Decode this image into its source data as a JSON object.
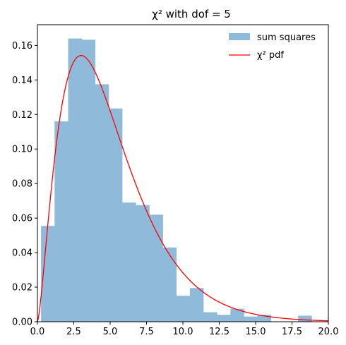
{
  "chart_data": {
    "type": "histogram",
    "title": "χ² with dof = 5",
    "xlabel": "",
    "ylabel": "",
    "xlim": [
      0.0,
      20.0
    ],
    "ylim": [
      0.0,
      0.172
    ],
    "x_ticks": [
      "0.0",
      "2.5",
      "5.0",
      "7.5",
      "10.0",
      "12.5",
      "15.0",
      "17.5",
      "20.0"
    ],
    "y_ticks": [
      "0.00",
      "0.02",
      "0.04",
      "0.06",
      "0.08",
      "0.10",
      "0.12",
      "0.14",
      "0.16"
    ],
    "x_tick_values": [
      0,
      2.5,
      5,
      7.5,
      10,
      12.5,
      15,
      17.5,
      20
    ],
    "y_tick_values": [
      0,
      0.02,
      0.04,
      0.06,
      0.08,
      0.1,
      0.12,
      0.14,
      0.16
    ],
    "grid": false,
    "legend_position": "top-right",
    "series": [
      {
        "name": "sum squares",
        "kind": "histogram",
        "color": "#8fbad9",
        "bins": [
          {
            "x0": 0.25,
            "x1": 1.18,
            "value": 0.0555
          },
          {
            "x0": 1.18,
            "x1": 2.11,
            "value": 0.116
          },
          {
            "x0": 2.11,
            "x1": 3.04,
            "value": 0.164
          },
          {
            "x0": 3.04,
            "x1": 3.97,
            "value": 0.1633
          },
          {
            "x0": 3.97,
            "x1": 4.9,
            "value": 0.1375
          },
          {
            "x0": 4.9,
            "x1": 5.83,
            "value": 0.1235
          },
          {
            "x0": 5.83,
            "x1": 6.76,
            "value": 0.069
          },
          {
            "x0": 6.76,
            "x1": 7.69,
            "value": 0.0675
          },
          {
            "x0": 7.69,
            "x1": 8.62,
            "value": 0.062
          },
          {
            "x0": 8.62,
            "x1": 9.55,
            "value": 0.043
          },
          {
            "x0": 9.55,
            "x1": 10.48,
            "value": 0.015
          },
          {
            "x0": 10.48,
            "x1": 11.41,
            "value": 0.0195
          },
          {
            "x0": 11.41,
            "x1": 12.34,
            "value": 0.0055
          },
          {
            "x0": 12.34,
            "x1": 13.27,
            "value": 0.004
          },
          {
            "x0": 13.27,
            "x1": 14.2,
            "value": 0.0075
          },
          {
            "x0": 14.2,
            "x1": 15.13,
            "value": 0.003
          },
          {
            "x0": 15.13,
            "x1": 16.06,
            "value": 0.004
          },
          {
            "x0": 16.06,
            "x1": 16.99,
            "value": 0.0
          },
          {
            "x0": 16.99,
            "x1": 17.92,
            "value": 0.0
          },
          {
            "x0": 17.92,
            "x1": 18.85,
            "value": 0.0035
          }
        ]
      },
      {
        "name": "χ² pdf",
        "kind": "line",
        "color": "#ff0000",
        "dof": 5
      }
    ]
  }
}
